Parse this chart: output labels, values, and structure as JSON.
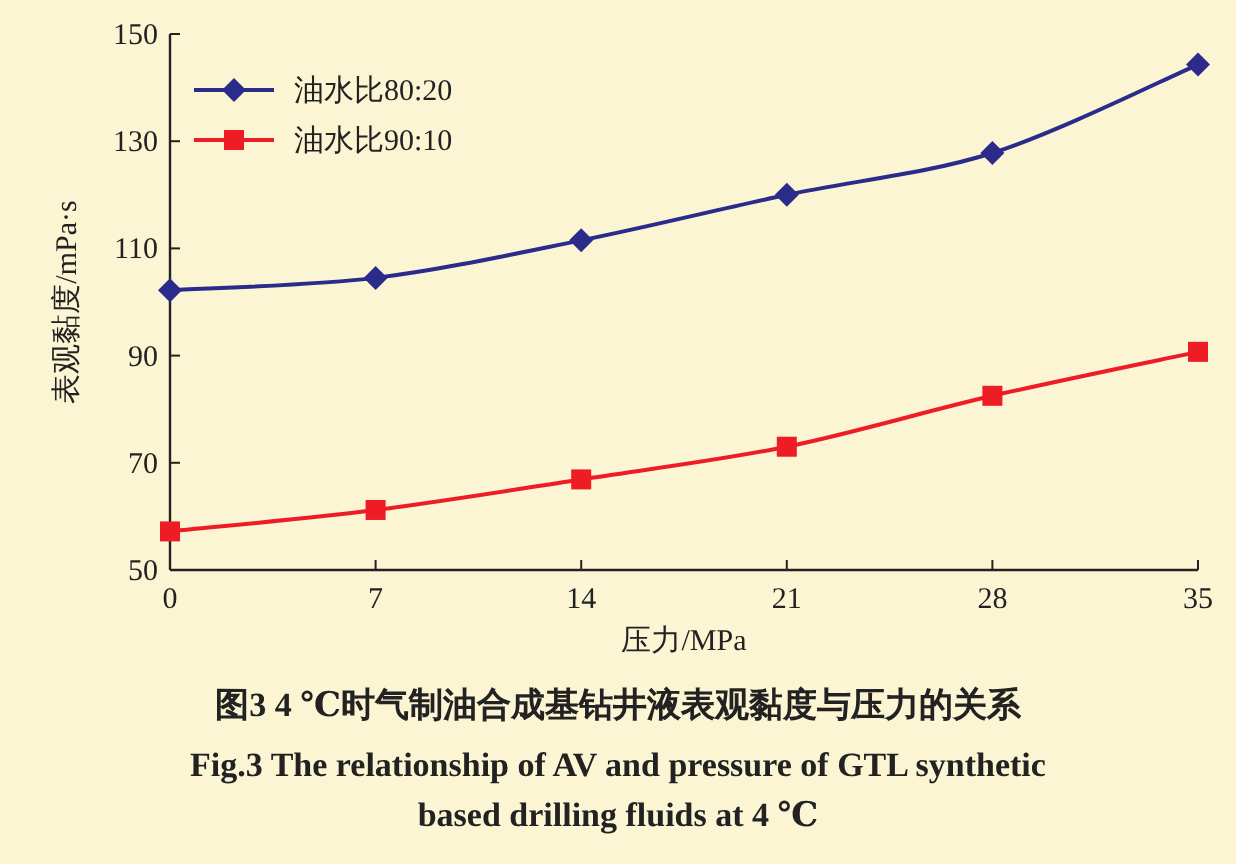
{
  "chart_data": {
    "type": "line",
    "xlabel": "压力/MPa",
    "ylabel": "表观黏度/mPa·s",
    "x": [
      0,
      7,
      14,
      21,
      28,
      35
    ],
    "series": [
      {
        "name": "油水比80:20",
        "color": "#2b2b8c",
        "marker": "diamond",
        "values": [
          102.2,
          104.5,
          111.5,
          120,
          127.8,
          144.3
        ]
      },
      {
        "name": "油水比90:10",
        "color": "#ee1c24",
        "marker": "square",
        "values": [
          57.2,
          61.2,
          66.9,
          73,
          82.5,
          90.7
        ]
      }
    ],
    "xlim": [
      0,
      35
    ],
    "xticks": [
      0,
      7,
      14,
      21,
      28,
      35
    ],
    "ylim": [
      50,
      150
    ],
    "yticks": [
      50,
      70,
      90,
      110,
      130,
      150
    ],
    "grid": false,
    "legend": "top left",
    "line_style": "solid",
    "annotations": [
      "图3  4 ℃时气制油合成基钻井液表观黏度与压力的关系",
      "Fig.3   The relationship of AV and pressure of GTL synthetic based drilling fluids at 4 ℃"
    ]
  }
}
